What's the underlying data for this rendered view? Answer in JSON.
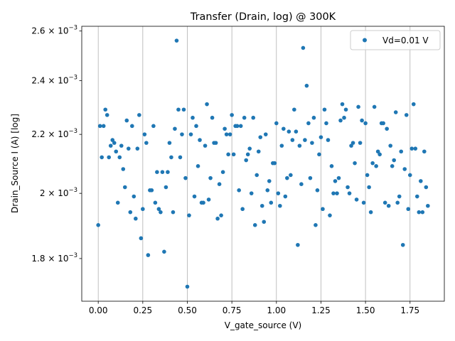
{
  "chart_data": {
    "type": "scatter",
    "title": "Transfer (Drain, log) @ 300K",
    "xlabel": "V_gate_source (V)",
    "ylabel": "Drain_Source I (A) [log]",
    "yscale": "log",
    "xlim": [
      -0.0925,
      1.9425
    ],
    "ylim": [
      0.00168,
      0.00262
    ],
    "grid": "vertical",
    "legend_position": "top-right",
    "x_ticks": [
      0.0,
      0.25,
      0.5,
      0.75,
      1.0,
      1.25,
      1.5,
      1.75
    ],
    "x_tick_labels": [
      "0.00",
      "0.25",
      "0.50",
      "0.75",
      "1.00",
      "1.25",
      "1.50",
      "1.75"
    ],
    "y_ticks": [
      0.0018,
      0.002,
      0.0022,
      0.0024,
      0.0026
    ],
    "y_tick_labels": [
      {
        "mantissa": "1.8",
        "exponent": "−3"
      },
      {
        "mantissa": "2",
        "exponent": "−3"
      },
      {
        "mantissa": "2.2",
        "exponent": "−3"
      },
      {
        "mantissa": "2.4",
        "exponent": "−3"
      },
      {
        "mantissa": "2.6",
        "exponent": "−3"
      }
    ],
    "series": [
      {
        "name": "Vd=0.01 V",
        "color": "#1f77b4",
        "points": [
          [
            0.0,
            0.0019
          ],
          [
            0.01,
            0.00223
          ],
          [
            0.02,
            0.00212
          ],
          [
            0.03,
            0.00223
          ],
          [
            0.04,
            0.00229
          ],
          [
            0.05,
            0.00227
          ],
          [
            0.06,
            0.00212
          ],
          [
            0.07,
            0.00216
          ],
          [
            0.08,
            0.00218
          ],
          [
            0.09,
            0.00217
          ],
          [
            0.1,
            0.00214
          ],
          [
            0.11,
            0.00197
          ],
          [
            0.12,
            0.00212
          ],
          [
            0.13,
            0.00216
          ],
          [
            0.14,
            0.00208
          ],
          [
            0.15,
            0.00202
          ],
          [
            0.16,
            0.00225
          ],
          [
            0.17,
            0.00215
          ],
          [
            0.18,
            0.00194
          ],
          [
            0.19,
            0.00223
          ],
          [
            0.2,
            0.00199
          ],
          [
            0.21,
            0.00192
          ],
          [
            0.22,
            0.00215
          ],
          [
            0.23,
            0.00227
          ],
          [
            0.24,
            0.00186
          ],
          [
            0.25,
            0.00195
          ],
          [
            0.26,
            0.0022
          ],
          [
            0.27,
            0.00217
          ],
          [
            0.28,
            0.00181
          ],
          [
            0.29,
            0.00201
          ],
          [
            0.3,
            0.00201
          ],
          [
            0.31,
            0.00223
          ],
          [
            0.32,
            0.00197
          ],
          [
            0.33,
            0.00207
          ],
          [
            0.34,
            0.00195
          ],
          [
            0.35,
            0.00194
          ],
          [
            0.36,
            0.00207
          ],
          [
            0.37,
            0.00182
          ],
          [
            0.38,
            0.00202
          ],
          [
            0.39,
            0.00207
          ],
          [
            0.4,
            0.00217
          ],
          [
            0.41,
            0.00212
          ],
          [
            0.42,
            0.00194
          ],
          [
            0.43,
            0.00222
          ],
          [
            0.44,
            0.00256
          ],
          [
            0.45,
            0.00229
          ],
          [
            0.46,
            0.00212
          ],
          [
            0.47,
            0.0022
          ],
          [
            0.48,
            0.00229
          ],
          [
            0.49,
            0.00205
          ],
          [
            0.5,
            0.00172
          ],
          [
            0.51,
            0.00193
          ],
          [
            0.52,
            0.0022
          ],
          [
            0.53,
            0.00226
          ],
          [
            0.54,
            0.00199
          ],
          [
            0.55,
            0.00223
          ],
          [
            0.56,
            0.00209
          ],
          [
            0.57,
            0.00218
          ],
          [
            0.58,
            0.00197
          ],
          [
            0.59,
            0.00197
          ],
          [
            0.6,
            0.00216
          ],
          [
            0.61,
            0.00231
          ],
          [
            0.62,
            0.00198
          ],
          [
            0.63,
            0.00205
          ],
          [
            0.64,
            0.00226
          ],
          [
            0.65,
            0.00217
          ],
          [
            0.66,
            0.00217
          ],
          [
            0.67,
            0.00192
          ],
          [
            0.68,
            0.00203
          ],
          [
            0.69,
            0.00193
          ],
          [
            0.7,
            0.00207
          ],
          [
            0.71,
            0.00222
          ],
          [
            0.72,
            0.0022
          ],
          [
            0.73,
            0.00213
          ],
          [
            0.74,
            0.0022
          ],
          [
            0.75,
            0.00227
          ],
          [
            0.76,
            0.00213
          ],
          [
            0.77,
            0.00223
          ],
          [
            0.78,
            0.00223
          ],
          [
            0.79,
            0.00201
          ],
          [
            0.8,
            0.00223
          ],
          [
            0.81,
            0.00195
          ],
          [
            0.82,
            0.00226
          ],
          [
            0.83,
            0.00211
          ],
          [
            0.84,
            0.00213
          ],
          [
            0.85,
            0.00215
          ],
          [
            0.86,
            0.002
          ],
          [
            0.87,
            0.00226
          ],
          [
            0.88,
            0.0019
          ],
          [
            0.89,
            0.00206
          ],
          [
            0.9,
            0.00214
          ],
          [
            0.91,
            0.00219
          ],
          [
            0.92,
            0.00196
          ],
          [
            0.93,
            0.00191
          ],
          [
            0.94,
            0.0022
          ],
          [
            0.95,
            0.00201
          ],
          [
            0.96,
            0.00204
          ],
          [
            0.97,
            0.00197
          ],
          [
            0.98,
            0.0021
          ],
          [
            0.99,
            0.0021
          ],
          [
            1.0,
            0.00224
          ],
          [
            1.01,
            0.002
          ],
          [
            1.02,
            0.00196
          ],
          [
            1.03,
            0.00216
          ],
          [
            1.04,
            0.00222
          ],
          [
            1.05,
            0.00199
          ],
          [
            1.06,
            0.00205
          ],
          [
            1.07,
            0.00221
          ],
          [
            1.08,
            0.00206
          ],
          [
            1.09,
            0.00218
          ],
          [
            1.1,
            0.00229
          ],
          [
            1.11,
            0.00221
          ],
          [
            1.12,
            0.00184
          ],
          [
            1.13,
            0.00216
          ],
          [
            1.14,
            0.00203
          ],
          [
            1.15,
            0.00253
          ],
          [
            1.16,
            0.00218
          ],
          [
            1.17,
            0.00238
          ],
          [
            1.18,
            0.00224
          ],
          [
            1.19,
            0.00205
          ],
          [
            1.2,
            0.00217
          ],
          [
            1.21,
            0.00226
          ],
          [
            1.22,
            0.0019
          ],
          [
            1.23,
            0.00201
          ],
          [
            1.24,
            0.00213
          ],
          [
            1.25,
            0.00219
          ],
          [
            1.26,
            0.00195
          ],
          [
            1.27,
            0.00229
          ],
          [
            1.28,
            0.00224
          ],
          [
            1.29,
            0.00218
          ],
          [
            1.3,
            0.00193
          ],
          [
            1.31,
            0.00209
          ],
          [
            1.32,
            0.002
          ],
          [
            1.33,
            0.00204
          ],
          [
            1.34,
            0.002
          ],
          [
            1.35,
            0.00205
          ],
          [
            1.36,
            0.00225
          ],
          [
            1.37,
            0.00231
          ],
          [
            1.38,
            0.00226
          ],
          [
            1.39,
            0.00229
          ],
          [
            1.4,
            0.00202
          ],
          [
            1.41,
            0.002
          ],
          [
            1.42,
            0.00216
          ],
          [
            1.43,
            0.00217
          ],
          [
            1.44,
            0.0021
          ],
          [
            1.45,
            0.00198
          ],
          [
            1.46,
            0.0023
          ],
          [
            1.47,
            0.00217
          ],
          [
            1.48,
            0.00225
          ],
          [
            1.49,
            0.00197
          ],
          [
            1.5,
            0.00224
          ],
          [
            1.51,
            0.00206
          ],
          [
            1.52,
            0.00202
          ],
          [
            1.53,
            0.00194
          ],
          [
            1.54,
            0.0021
          ],
          [
            1.55,
            0.0023
          ],
          [
            1.56,
            0.00209
          ],
          [
            1.57,
            0.00214
          ],
          [
            1.58,
            0.00213
          ],
          [
            1.59,
            0.00224
          ],
          [
            1.6,
            0.00224
          ],
          [
            1.61,
            0.00197
          ],
          [
            1.62,
            0.00222
          ],
          [
            1.63,
            0.00196
          ],
          [
            1.64,
            0.00216
          ],
          [
            1.65,
            0.00209
          ],
          [
            1.66,
            0.00211
          ],
          [
            1.67,
            0.00228
          ],
          [
            1.68,
            0.00197
          ],
          [
            1.69,
            0.00199
          ],
          [
            1.7,
            0.00214
          ],
          [
            1.71,
            0.00184
          ],
          [
            1.72,
            0.00208
          ],
          [
            1.73,
            0.00227
          ],
          [
            1.74,
            0.00195
          ],
          [
            1.75,
            0.00206
          ],
          [
            1.76,
            0.00215
          ],
          [
            1.77,
            0.00231
          ],
          [
            1.78,
            0.00215
          ],
          [
            1.79,
            0.00199
          ],
          [
            1.8,
            0.00194
          ],
          [
            1.81,
            0.00204
          ],
          [
            1.82,
            0.00194
          ],
          [
            1.83,
            0.00214
          ],
          [
            1.84,
            0.00202
          ],
          [
            1.85,
            0.00196
          ]
        ]
      }
    ]
  }
}
